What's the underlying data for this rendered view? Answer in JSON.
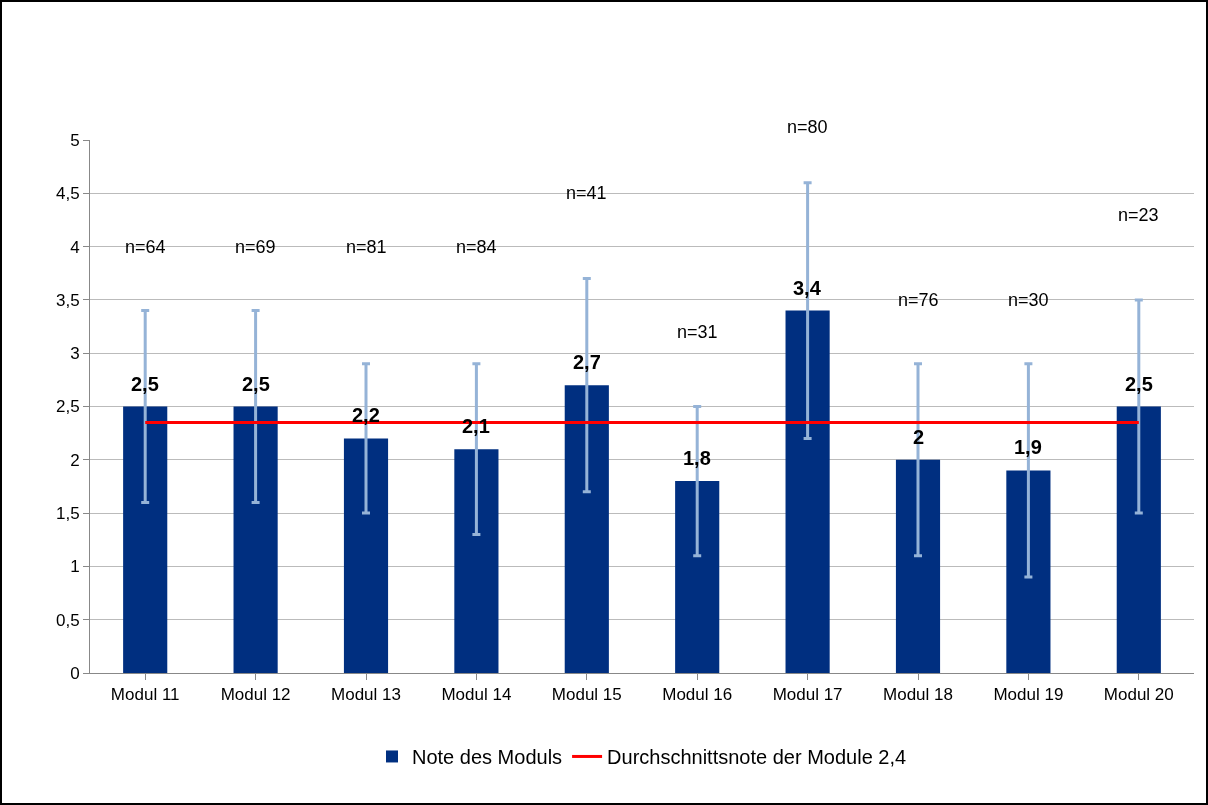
{
  "chart_data": {
    "type": "bar",
    "categories": [
      "Modul 11",
      "Modul 12",
      "Modul 13",
      "Modul 14",
      "Modul 15",
      "Modul 16",
      "Modul 17",
      "Modul 18",
      "Modul 19",
      "Modul 20"
    ],
    "series": [
      {
        "name": "Note des Moduls",
        "color": "#002f80",
        "values": [
          2.5,
          2.5,
          2.2,
          2.1,
          2.7,
          1.8,
          3.4,
          2.0,
          1.9,
          2.5
        ],
        "value_labels": [
          "2,5",
          "2,5",
          "2,2",
          "2,1",
          "2,7",
          "1,8",
          "3,4",
          "2",
          "1,9",
          "2,5"
        ],
        "errors": [
          0.9,
          0.9,
          0.7,
          0.8,
          1.0,
          0.7,
          1.2,
          0.9,
          1.0,
          1.0
        ]
      }
    ],
    "ref_lines": [
      {
        "axis": "y",
        "value": 2.35,
        "label": "Durchschnittsnote der Module 2,4",
        "color": "#ff0000"
      }
    ],
    "annotations": [
      "n=64",
      "n=69",
      "n=81",
      "n=84",
      "n=41",
      "n=31",
      "n=80",
      "n=76",
      "n=30",
      "n=23"
    ],
    "ylim": [
      0,
      5
    ],
    "yticks": [
      0,
      {
        "value": 0.5,
        "label": "0,5"
      },
      1,
      {
        "value": 1.5,
        "label": "1,5"
      },
      2,
      {
        "value": 2.5,
        "label": "2,5"
      },
      3,
      {
        "value": 3.5,
        "label": "3,5"
      },
      4,
      {
        "value": 4.5,
        "label": "4,5"
      },
      5
    ],
    "grid": "y",
    "legend": "bottom"
  }
}
